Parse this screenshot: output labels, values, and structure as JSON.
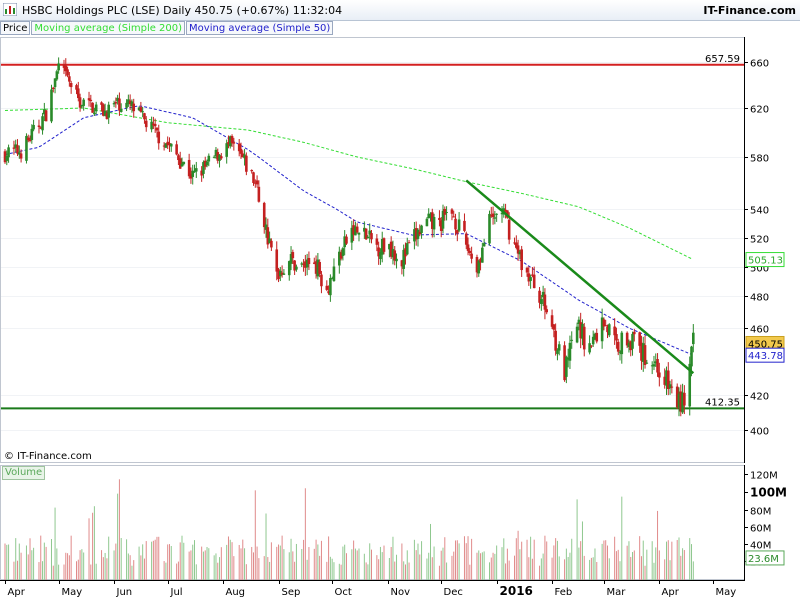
{
  "header": {
    "title": "HSBC Holdings PLC (LSE)  Daily   450.75 (+0.67%)   11:32:04",
    "brand": "IT-Finance.com"
  },
  "legend": {
    "price": "Price",
    "ma200": "Moving average (Simple 200)",
    "ma50": "Moving average (Simple 50)"
  },
  "copyright": "© IT-Finance.com",
  "volume_label": "Volume",
  "colors": {
    "up": "#2a8a2a",
    "down": "#c42020",
    "ma200": "#33dd33",
    "ma50": "#2222cc",
    "resistance": "#d42020",
    "support": "#1a7a1a",
    "trendline": "#1a8a1a"
  },
  "chart_data": {
    "type": "candlestick",
    "title": "HSBC Holdings PLC (LSE)",
    "price_axis": {
      "ticks": [
        660,
        620,
        580,
        540,
        520,
        500,
        480,
        460,
        420,
        400
      ],
      "range": [
        395,
        668
      ]
    },
    "x_axis": {
      "labels": [
        "Apr",
        "May",
        "Jun",
        "Jul",
        "Aug",
        "Sep",
        "Oct",
        "Nov",
        "Dec",
        "2016",
        "Feb",
        "Mar",
        "Apr",
        "May"
      ],
      "range": [
        "2015-04-01",
        "2016-05-15"
      ]
    },
    "price_labels": {
      "resistance": "657.59",
      "support": "412.35",
      "ma200": "505.13",
      "last": "450.75",
      "ma50": "443.78"
    },
    "levels": {
      "resistance": 657.59,
      "support": 412.35
    },
    "trendline": {
      "start": [
        "2015-12-15",
        562
      ],
      "end": [
        "2016-04-20",
        433
      ]
    },
    "close_path": [
      [
        "2015-04-01",
        583
      ],
      [
        "2015-04-10",
        585
      ],
      [
        "2015-04-17",
        600
      ],
      [
        "2015-04-24",
        616
      ],
      [
        "2015-05-01",
        655
      ],
      [
        "2015-05-06",
        645
      ],
      [
        "2015-05-13",
        625
      ],
      [
        "2015-05-20",
        622
      ],
      [
        "2015-05-27",
        617
      ],
      [
        "2015-06-03",
        624
      ],
      [
        "2015-06-10",
        622
      ],
      [
        "2015-06-17",
        611
      ],
      [
        "2015-06-24",
        600
      ],
      [
        "2015-07-01",
        590
      ],
      [
        "2015-07-08",
        578
      ],
      [
        "2015-07-15",
        565
      ],
      [
        "2015-07-22",
        572
      ],
      [
        "2015-07-29",
        582
      ],
      [
        "2015-08-05",
        590
      ],
      [
        "2015-08-12",
        578
      ],
      [
        "2015-08-19",
        560
      ],
      [
        "2015-08-26",
        520
      ],
      [
        "2015-08-31",
        495
      ],
      [
        "2015-09-07",
        505
      ],
      [
        "2015-09-14",
        500
      ],
      [
        "2015-09-21",
        505
      ],
      [
        "2015-09-28",
        485
      ],
      [
        "2015-10-05",
        508
      ],
      [
        "2015-10-12",
        525
      ],
      [
        "2015-10-19",
        522
      ],
      [
        "2015-10-26",
        514
      ],
      [
        "2015-11-02",
        515
      ],
      [
        "2015-11-09",
        505
      ],
      [
        "2015-11-16",
        520
      ],
      [
        "2015-11-23",
        530
      ],
      [
        "2015-11-30",
        530
      ],
      [
        "2015-12-07",
        538
      ],
      [
        "2015-12-14",
        518
      ],
      [
        "2015-12-21",
        500
      ],
      [
        "2015-12-28",
        530
      ],
      [
        "2016-01-04",
        540
      ],
      [
        "2016-01-11",
        515
      ],
      [
        "2016-01-18",
        495
      ],
      [
        "2016-01-25",
        482
      ],
      [
        "2016-02-01",
        462
      ],
      [
        "2016-02-08",
        432
      ],
      [
        "2016-02-15",
        462
      ],
      [
        "2016-02-22",
        448
      ],
      [
        "2016-03-01",
        465
      ],
      [
        "2016-03-08",
        450
      ],
      [
        "2016-03-15",
        455
      ],
      [
        "2016-03-22",
        445
      ],
      [
        "2016-03-29",
        440
      ],
      [
        "2016-04-05",
        428
      ],
      [
        "2016-04-12",
        415
      ],
      [
        "2016-04-15",
        418
      ],
      [
        "2016-04-18",
        436
      ],
      [
        "2016-04-20",
        450.75
      ]
    ],
    "ma200_path": [
      [
        "2015-04-01",
        618
      ],
      [
        "2015-05-15",
        620
      ],
      [
        "2015-07-01",
        608
      ],
      [
        "2015-08-15",
        602
      ],
      [
        "2015-09-15",
        592
      ],
      [
        "2015-10-15",
        580
      ],
      [
        "2015-11-15",
        571
      ],
      [
        "2015-12-15",
        561
      ],
      [
        "2016-01-15",
        552
      ],
      [
        "2016-02-15",
        542
      ],
      [
        "2016-03-15",
        527
      ],
      [
        "2016-04-20",
        505.13
      ]
    ],
    "ma50_path": [
      [
        "2015-04-01",
        582
      ],
      [
        "2015-04-20",
        588
      ],
      [
        "2015-05-15",
        612
      ],
      [
        "2015-06-15",
        622
      ],
      [
        "2015-07-15",
        612
      ],
      [
        "2015-08-15",
        586
      ],
      [
        "2015-09-15",
        554
      ],
      [
        "2015-10-15",
        531
      ],
      [
        "2015-11-15",
        522
      ],
      [
        "2015-12-15",
        523
      ],
      [
        "2016-01-15",
        504
      ],
      [
        "2016-02-15",
        478
      ],
      [
        "2016-03-15",
        460
      ],
      [
        "2016-04-20",
        443.78
      ]
    ],
    "volume_axis": {
      "ticks": [
        {
          "label": "120M",
          "value": 120
        },
        {
          "label": "100M",
          "value": 100
        },
        {
          "label": "80M",
          "value": 80
        },
        {
          "label": "60M",
          "value": 60
        },
        {
          "label": "40M",
          "value": 40
        },
        {
          "label": "20M",
          "value": 20
        }
      ],
      "range": [
        0,
        128
      ],
      "last": "23.6M"
    }
  }
}
